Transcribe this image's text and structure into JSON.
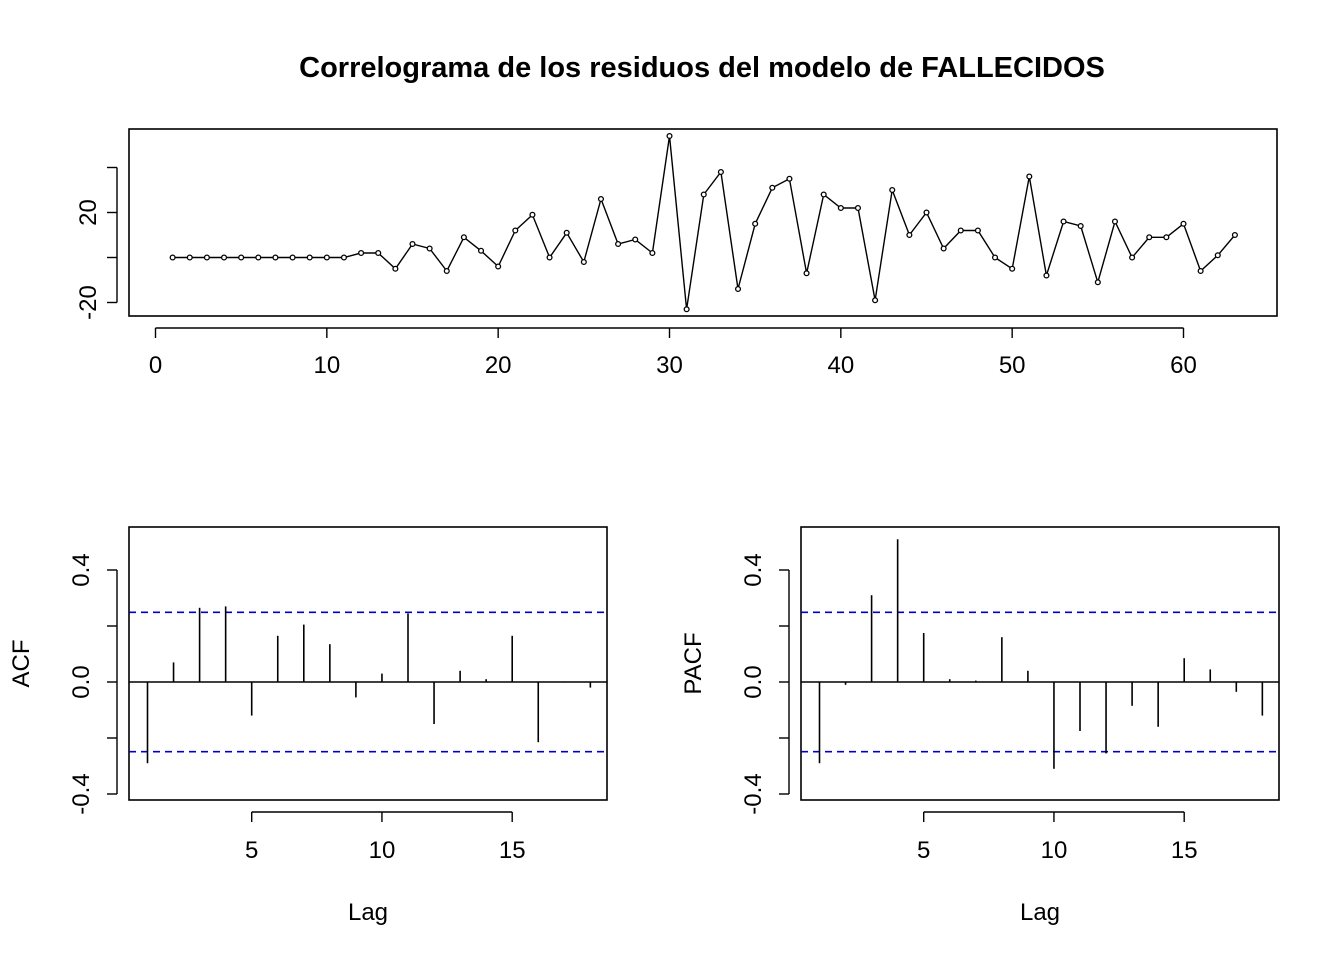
{
  "title": "Correlograma de los residuos del modelo de FALLECIDOS",
  "chart_data": [
    {
      "type": "line",
      "title": "Correlograma de los residuos del modelo de FALLECIDOS",
      "xlabel": "",
      "ylabel": "",
      "x_ticks": [
        "0",
        "10",
        "20",
        "30",
        "40",
        "50",
        "60"
      ],
      "y_ticks": [
        "-20",
        "20"
      ],
      "xlim": [
        0,
        63
      ],
      "ylim": [
        -23,
        47
      ],
      "markers": true,
      "x": [
        1,
        2,
        3,
        4,
        5,
        6,
        7,
        8,
        9,
        10,
        11,
        12,
        13,
        14,
        15,
        16,
        17,
        18,
        19,
        20,
        21,
        22,
        23,
        24,
        25,
        26,
        27,
        28,
        29,
        30,
        31,
        32,
        33,
        34,
        35,
        36,
        37,
        38,
        39,
        40,
        41,
        42,
        43,
        44,
        45,
        46,
        47,
        48,
        49,
        50,
        51,
        52,
        53,
        54,
        55,
        56,
        57,
        58,
        59,
        60,
        61,
        62,
        63
      ],
      "values": [
        0,
        0,
        0,
        0,
        0,
        0,
        0,
        0,
        0,
        0,
        0,
        2,
        2,
        -5,
        6,
        4,
        -6,
        9,
        3,
        -4,
        12,
        19,
        0,
        11,
        -2,
        26,
        6,
        8,
        2,
        54,
        -23,
        28,
        38,
        -14,
        15,
        31,
        35,
        -7,
        28,
        22,
        22,
        -19,
        30,
        10,
        20,
        4,
        12,
        12,
        0,
        -5,
        36,
        -8,
        16,
        14,
        -11,
        16,
        0,
        9,
        9,
        15,
        -6,
        1,
        10
      ]
    },
    {
      "type": "bar",
      "title": "",
      "xlabel": "Lag",
      "ylabel": "ACF",
      "x_ticks": [
        "5",
        "10",
        "15"
      ],
      "y_ticks": [
        "-0.4",
        "0.0",
        "0.4"
      ],
      "xlim": [
        0.4,
        18.6
      ],
      "ylim": [
        -0.42,
        0.55
      ],
      "ci": [
        0.249,
        -0.249
      ],
      "lags": [
        1,
        2,
        3,
        4,
        5,
        6,
        7,
        8,
        9,
        10,
        11,
        12,
        13,
        14,
        15,
        16,
        17,
        18
      ],
      "values": [
        -0.29,
        0.07,
        0.265,
        0.27,
        -0.12,
        0.165,
        0.205,
        0.135,
        -0.055,
        0.03,
        0.245,
        -0.15,
        0.04,
        0.01,
        0.165,
        -0.215,
        0.002,
        -0.02
      ],
      "ci_color": "#0000cc"
    },
    {
      "type": "bar",
      "title": "",
      "xlabel": "Lag",
      "ylabel": "PACF",
      "x_ticks": [
        "5",
        "10",
        "15"
      ],
      "y_ticks": [
        "-0.4",
        "0.0",
        "0.4"
      ],
      "xlim": [
        0.4,
        18.6
      ],
      "ylim": [
        -0.42,
        0.55
      ],
      "ci": [
        0.249,
        -0.249
      ],
      "lags": [
        1,
        2,
        3,
        4,
        5,
        6,
        7,
        8,
        9,
        10,
        11,
        12,
        13,
        14,
        15,
        16,
        17,
        18
      ],
      "values": [
        -0.29,
        -0.01,
        0.31,
        0.51,
        0.175,
        0.01,
        0.005,
        0.16,
        0.04,
        -0.31,
        -0.175,
        -0.255,
        -0.085,
        -0.16,
        0.085,
        0.045,
        -0.035,
        -0.12
      ],
      "ci_color": "#0000cc"
    }
  ]
}
